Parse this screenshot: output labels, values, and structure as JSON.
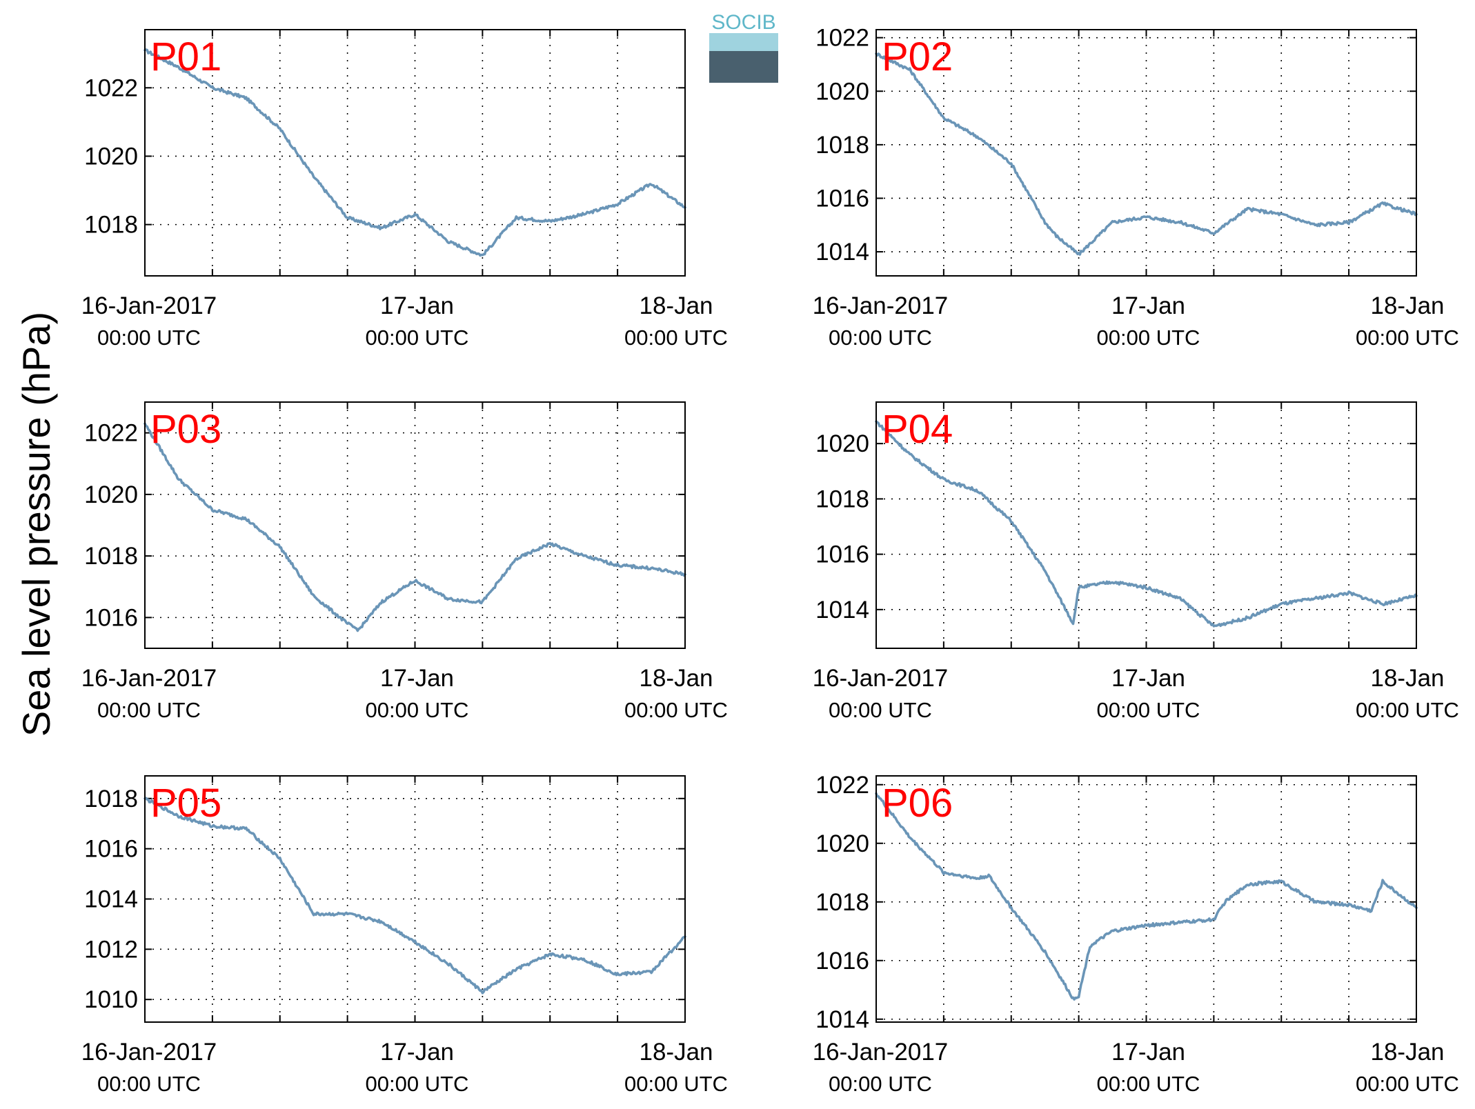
{
  "ylabel": "Sea level pressure (hPa)",
  "logo": {
    "text": "SOCIB",
    "color": "#5fb7c9"
  },
  "colors": {
    "line": "#6a95b7",
    "label": "#ff0000"
  },
  "chart_data": [
    {
      "type": "line",
      "title": "P01",
      "xlim": [
        "2017-01-16 00:00",
        "2017-01-18 00:00"
      ],
      "ylim": [
        1016.5,
        1023.7
      ],
      "yticks": [
        1018,
        1020,
        1022
      ],
      "xtick_labels": [
        [
          "16-Jan-2017",
          "00:00 UTC"
        ],
        [
          "17-Jan",
          "00:00 UTC"
        ],
        [
          "18-Jan",
          "00:00 UTC"
        ]
      ],
      "grid": true,
      "x_hours": [
        0,
        3,
        6,
        9,
        12,
        15,
        18,
        21,
        24,
        27,
        30,
        33,
        36,
        39,
        42,
        45,
        48
      ],
      "y": [
        1023.1,
        1022.6,
        1022.0,
        1021.7,
        1020.8,
        1019.4,
        1018.2,
        1017.9,
        1018.3,
        1017.5,
        1017.1,
        1018.2,
        1018.1,
        1018.3,
        1018.6,
        1019.2,
        1018.5
      ]
    },
    {
      "type": "line",
      "title": "P02",
      "xlim": [
        "2017-01-16 00:00",
        "2017-01-18 00:00"
      ],
      "ylim": [
        1013.1,
        1022.3
      ],
      "yticks": [
        1014,
        1016,
        1018,
        1020,
        1022
      ],
      "xtick_labels": [
        [
          "16-Jan-2017",
          "00:00 UTC"
        ],
        [
          "17-Jan",
          "00:00 UTC"
        ],
        [
          "18-Jan",
          "00:00 UTC"
        ]
      ],
      "grid": true,
      "x_hours": [
        0,
        3,
        6,
        9,
        12,
        15,
        16,
        18,
        21,
        24,
        27,
        30,
        33,
        36,
        39,
        42,
        45,
        48
      ],
      "y": [
        1021.4,
        1020.8,
        1019.0,
        1018.3,
        1017.3,
        1015.1,
        1014.6,
        1013.9,
        1015.1,
        1015.3,
        1015.1,
        1014.7,
        1015.6,
        1015.4,
        1015.0,
        1015.1,
        1015.8,
        1015.4
      ]
    },
    {
      "type": "line",
      "title": "P03",
      "xlim": [
        "2017-01-16 00:00",
        "2017-01-18 00:00"
      ],
      "ylim": [
        1015.0,
        1023.0
      ],
      "yticks": [
        1016,
        1018,
        1020,
        1022
      ],
      "xtick_labels": [
        [
          "16-Jan-2017",
          "00:00 UTC"
        ],
        [
          "17-Jan",
          "00:00 UTC"
        ],
        [
          "18-Jan",
          "00:00 UTC"
        ]
      ],
      "grid": true,
      "x_hours": [
        0,
        3,
        6,
        9,
        12,
        15,
        18,
        19,
        21,
        24,
        27,
        30,
        33,
        36,
        39,
        42,
        45,
        48
      ],
      "y": [
        1022.3,
        1020.5,
        1019.5,
        1019.2,
        1018.3,
        1016.7,
        1015.8,
        1015.6,
        1016.5,
        1017.2,
        1016.6,
        1016.5,
        1017.9,
        1018.4,
        1018.0,
        1017.7,
        1017.6,
        1017.4
      ]
    },
    {
      "type": "line",
      "title": "P04",
      "xlim": [
        "2017-01-16 00:00",
        "2017-01-18 00:00"
      ],
      "ylim": [
        1012.6,
        1021.5
      ],
      "yticks": [
        1014,
        1016,
        1018,
        1020
      ],
      "xtick_labels": [
        [
          "16-Jan-2017",
          "00:00 UTC"
        ],
        [
          "17-Jan",
          "00:00 UTC"
        ],
        [
          "18-Jan",
          "00:00 UTC"
        ]
      ],
      "grid": true,
      "x_hours": [
        0,
        3,
        6,
        9,
        12,
        15,
        17.5,
        18,
        21,
        24,
        27,
        30,
        33,
        36,
        39,
        42,
        45,
        48
      ],
      "y": [
        1020.8,
        1019.6,
        1018.7,
        1018.3,
        1017.2,
        1015.4,
        1013.5,
        1014.8,
        1015.0,
        1014.8,
        1014.4,
        1013.4,
        1013.7,
        1014.2,
        1014.4,
        1014.6,
        1014.2,
        1014.5
      ]
    },
    {
      "type": "line",
      "title": "P05",
      "xlim": [
        "2017-01-16 00:00",
        "2017-01-18 00:00"
      ],
      "ylim": [
        1009.1,
        1018.9
      ],
      "yticks": [
        1010,
        1012,
        1014,
        1016,
        1018
      ],
      "xtick_labels": [
        [
          "16-Jan-2017",
          "00:00 UTC"
        ],
        [
          "17-Jan",
          "00:00 UTC"
        ],
        [
          "18-Jan",
          "00:00 UTC"
        ]
      ],
      "grid": true,
      "x_hours": [
        0,
        3,
        6,
        9,
        12,
        15,
        18,
        21,
        24,
        27,
        30,
        33,
        36,
        39,
        42,
        45,
        48
      ],
      "y": [
        1018.0,
        1017.3,
        1016.9,
        1016.8,
        1015.6,
        1013.4,
        1013.4,
        1013.1,
        1012.3,
        1011.4,
        1010.3,
        1011.2,
        1011.8,
        1011.6,
        1011.0,
        1011.1,
        1012.5
      ]
    },
    {
      "type": "line",
      "title": "P06",
      "xlim": [
        "2017-01-16 00:00",
        "2017-01-18 00:00"
      ],
      "ylim": [
        1013.9,
        1022.3
      ],
      "yticks": [
        1014,
        1016,
        1018,
        1020,
        1022
      ],
      "xtick_labels": [
        [
          "16-Jan-2017",
          "00:00 UTC"
        ],
        [
          "17-Jan",
          "00:00 UTC"
        ],
        [
          "18-Jan",
          "00:00 UTC"
        ]
      ],
      "grid": true,
      "x_hours": [
        0,
        3,
        6,
        9,
        10,
        12,
        15,
        17.5,
        18,
        19,
        21,
        24,
        27,
        30,
        31,
        33,
        36,
        39,
        42,
        44,
        45,
        48
      ],
      "y": [
        1021.7,
        1020.2,
        1019.0,
        1018.8,
        1018.9,
        1017.8,
        1016.3,
        1014.7,
        1014.8,
        1016.5,
        1017.0,
        1017.2,
        1017.3,
        1017.4,
        1018.0,
        1018.6,
        1018.7,
        1018.0,
        1017.9,
        1017.7,
        1018.7,
        1017.8
      ]
    }
  ]
}
